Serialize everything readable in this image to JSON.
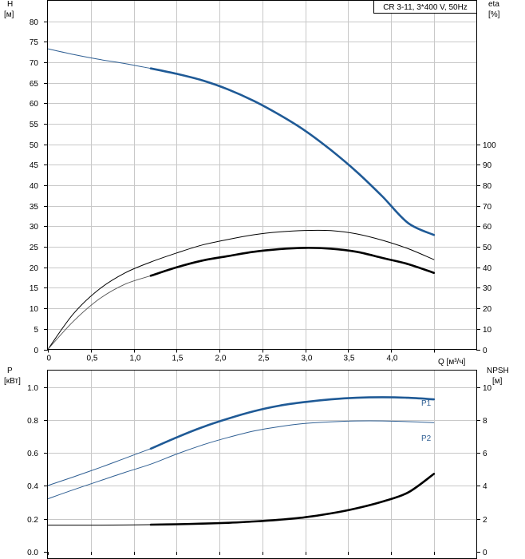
{
  "chart_data": [
    {
      "type": "line",
      "legend_box": "CR 3-11, 3*400 V, 50Hz",
      "xlabel": "Q [м³/ч]",
      "x_ticks": [
        "0",
        "0,5",
        "1,0",
        "1,5",
        "2,0",
        "2,5",
        "3,0",
        "3,5",
        "4,0"
      ],
      "xlim": [
        0,
        4.5
      ],
      "left_axis": {
        "label": "H",
        "unit": "[м]",
        "ylim": [
          0,
          85
        ],
        "ticks": [
          "0",
          "5",
          "10",
          "15",
          "20",
          "25",
          "30",
          "35",
          "40",
          "45",
          "50",
          "55",
          "60",
          "65",
          "70",
          "75",
          "80"
        ]
      },
      "right_axis": {
        "label": "eta",
        "unit": "[%]",
        "ylim": [
          0,
          170
        ],
        "ticks": [
          "0",
          "10",
          "20",
          "30",
          "40",
          "50",
          "60",
          "70",
          "80",
          "90",
          "100"
        ]
      },
      "series": [
        {
          "axis": "left",
          "style": "thin-blue",
          "x": [
            0,
            0.3,
            0.6,
            0.9,
            1.2
          ],
          "y": [
            73.3,
            71.9,
            70.7,
            69.7,
            68.5
          ]
        },
        {
          "axis": "left",
          "style": "thick-blue",
          "x": [
            1.2,
            1.5,
            1.8,
            2.1,
            2.4,
            2.7,
            3.0,
            3.3,
            3.6,
            3.9,
            4.2,
            4.5
          ],
          "y": [
            68.5,
            67.2,
            65.6,
            63.4,
            60.6,
            57.2,
            53.3,
            48.6,
            43.3,
            37.3,
            30.8,
            27.9
          ]
        },
        {
          "axis": "right",
          "style": "thin-black",
          "x": [
            0,
            0.3,
            0.6,
            0.9,
            1.2,
            1.5,
            1.8,
            2.1,
            2.4,
            2.7,
            3.0,
            3.3,
            3.6,
            3.9,
            4.2,
            4.5
          ],
          "y": [
            0,
            17.5,
            29.4,
            37.3,
            42.6,
            47.0,
            50.9,
            53.6,
            55.9,
            57.3,
            58.0,
            57.9,
            56.3,
            53.2,
            49.1,
            43.8
          ]
        },
        {
          "axis": "right",
          "style": "thin-gray",
          "x": [
            0,
            0.3,
            0.6,
            0.9,
            1.2
          ],
          "y": [
            0,
            13.8,
            24.6,
            31.8,
            35.9
          ]
        },
        {
          "axis": "right",
          "style": "thick-black",
          "x": [
            1.2,
            1.5,
            1.8,
            2.1,
            2.4,
            2.7,
            3.0,
            3.3,
            3.6,
            3.9,
            4.2,
            4.5
          ],
          "y": [
            35.9,
            40.0,
            43.3,
            45.5,
            47.6,
            48.9,
            49.5,
            49.1,
            47.6,
            44.6,
            41.6,
            37.3
          ]
        }
      ]
    },
    {
      "type": "line",
      "x_ticks": [
        "0",
        "0,5",
        "1,0",
        "1,5",
        "2,0",
        "2,5",
        "3,0",
        "3,5",
        "4,0"
      ],
      "xlim": [
        0,
        4.5
      ],
      "left_axis": {
        "label": "P",
        "unit": "[кВт]",
        "ylim": [
          0,
          1.1
        ],
        "ticks": [
          "0.0",
          "0.2",
          "0.4",
          "0.6",
          "0.8",
          "1.0"
        ]
      },
      "right_axis": {
        "label": "NPSH",
        "unit": "[м]",
        "ylim": [
          0,
          11
        ],
        "ticks": [
          "0",
          "2",
          "4",
          "6",
          "8",
          "10"
        ]
      },
      "series": [
        {
          "axis": "left",
          "name": "P1",
          "style": "thin-blue",
          "x": [
            0,
            0.3,
            0.6,
            0.9,
            1.2
          ],
          "y": [
            0.402,
            0.455,
            0.51,
            0.568,
            0.626
          ]
        },
        {
          "axis": "left",
          "name": "P1",
          "style": "thick-blue",
          "x": [
            1.2,
            1.5,
            1.8,
            2.1,
            2.4,
            2.7,
            3.0,
            3.3,
            3.6,
            3.9,
            4.2,
            4.5
          ],
          "y": [
            0.626,
            0.694,
            0.756,
            0.808,
            0.853,
            0.887,
            0.909,
            0.925,
            0.935,
            0.938,
            0.935,
            0.925
          ]
        },
        {
          "axis": "left",
          "name": "P2",
          "style": "thin-blue",
          "x": [
            0,
            0.3,
            0.6,
            0.9,
            1.2,
            1.5,
            1.8,
            2.1,
            2.4,
            2.7,
            3.0,
            3.3,
            3.6,
            3.9,
            4.2,
            4.5
          ],
          "y": [
            0.322,
            0.377,
            0.43,
            0.482,
            0.532,
            0.593,
            0.648,
            0.694,
            0.733,
            0.76,
            0.779,
            0.789,
            0.794,
            0.794,
            0.79,
            0.784
          ]
        },
        {
          "axis": "right",
          "style": "thin-black",
          "x": [
            0,
            0.3,
            0.6,
            0.9,
            1.2
          ],
          "y": [
            1.62,
            1.62,
            1.62,
            1.63,
            1.65
          ]
        },
        {
          "axis": "right",
          "style": "thick-black",
          "x": [
            1.2,
            1.5,
            1.8,
            2.1,
            2.4,
            2.7,
            3.0,
            3.3,
            3.6,
            3.9,
            4.2,
            4.5
          ],
          "y": [
            1.65,
            1.67,
            1.71,
            1.76,
            1.84,
            1.95,
            2.1,
            2.33,
            2.64,
            3.05,
            3.6,
            4.73
          ]
        }
      ],
      "curve_labels": [
        "P1",
        "P2"
      ]
    }
  ]
}
